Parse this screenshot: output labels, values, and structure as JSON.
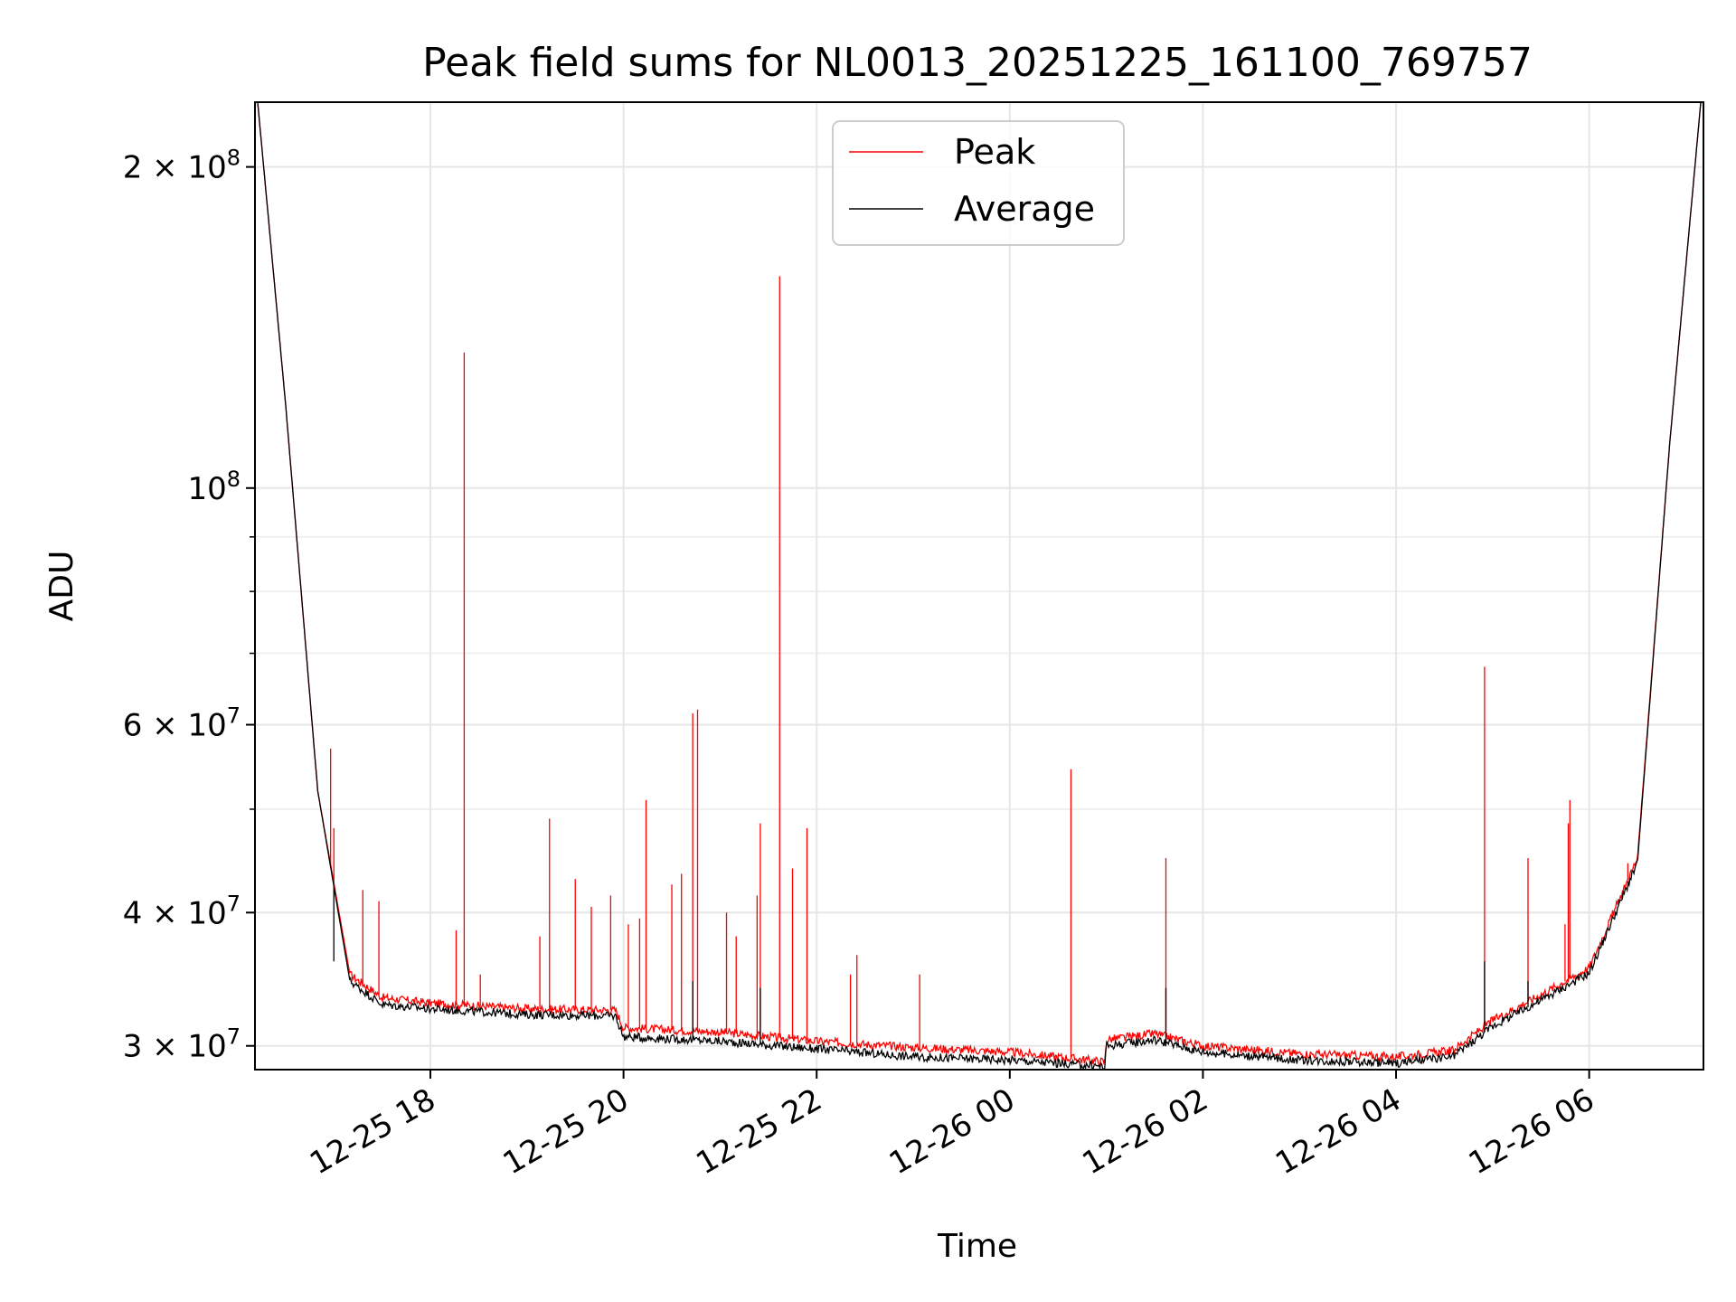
{
  "chart_data": {
    "type": "line",
    "title": "Peak field sums for NL0013_20251225_161100_769757",
    "xlabel": "Time",
    "ylabel": "ADU",
    "x_type": "datetime",
    "xlim": [
      "2025-12-25 16:11",
      "2025-12-26 07:11"
    ],
    "x_ticks": [
      {
        "value": "2025-12-25 18:00",
        "label": "12-25 18"
      },
      {
        "value": "2025-12-25 20:00",
        "label": "12-25 20"
      },
      {
        "value": "2025-12-25 22:00",
        "label": "12-25 22"
      },
      {
        "value": "2025-12-26 00:00",
        "label": "12-26 00"
      },
      {
        "value": "2025-12-26 02:00",
        "label": "12-26 02"
      },
      {
        "value": "2025-12-26 04:00",
        "label": "12-26 04"
      },
      {
        "value": "2025-12-26 06:00",
        "label": "12-26 06"
      }
    ],
    "y_scale": "log",
    "ylim": [
      28500000,
      230000000
    ],
    "y_major_ticks": [
      {
        "value": 30000000,
        "mantissa": "3",
        "exponent": "7"
      },
      {
        "value": 40000000,
        "mantissa": "4",
        "exponent": "7"
      },
      {
        "value": 60000000,
        "mantissa": "6",
        "exponent": "7"
      },
      {
        "value": 100000000,
        "mantissa": "",
        "exponent": "8"
      },
      {
        "value": 200000000,
        "mantissa": "2",
        "exponent": "8"
      }
    ],
    "y_minor_ticks": [
      50000000,
      70000000,
      80000000,
      90000000
    ],
    "grid": true,
    "legend_position": "top-center",
    "series": [
      {
        "name": "Peak",
        "color": "#ff0000",
        "x": [
          "2025-12-25 16:11",
          "2025-12-25 16:30",
          "2025-12-25 16:50",
          "2025-12-25 17:10",
          "2025-12-25 17:30",
          "2025-12-25 18:00",
          "2025-12-25 19:00",
          "2025-12-25 19:55",
          "2025-12-25 20:00",
          "2025-12-25 21:00",
          "2025-12-25 22:00",
          "2025-12-25 23:00",
          "2025-12-26 00:00",
          "2025-12-26 00:59",
          "2025-12-26 01:00",
          "2025-12-26 01:30",
          "2025-12-26 02:00",
          "2025-12-26 03:00",
          "2025-12-26 04:00",
          "2025-12-26 04:35",
          "2025-12-26 05:00",
          "2025-12-26 05:30",
          "2025-12-26 06:00",
          "2025-12-26 06:30",
          "2025-12-26 06:50",
          "2025-12-26 07:11"
        ],
        "y": [
          245000000,
          120000000,
          52000000,
          35000000,
          33300000,
          32900000,
          32500000,
          32400000,
          31200000,
          30900000,
          30300000,
          29900000,
          29600000,
          29000000,
          30400000,
          30800000,
          30000000,
          29500000,
          29300000,
          29700000,
          31700000,
          33500000,
          35500000,
          45000000,
          110000000,
          245000000
        ],
        "spikes": [
          {
            "x": "2025-12-25 16:58",
            "y": 57000000
          },
          {
            "x": "2025-12-25 17:00",
            "y": 48000000
          },
          {
            "x": "2025-12-25 17:18",
            "y": 42000000
          },
          {
            "x": "2025-12-25 17:28",
            "y": 41000000
          },
          {
            "x": "2025-12-25 18:16",
            "y": 38500000
          },
          {
            "x": "2025-12-25 18:21",
            "y": 134000000
          },
          {
            "x": "2025-12-25 18:31",
            "y": 35000000
          },
          {
            "x": "2025-12-25 19:08",
            "y": 38000000
          },
          {
            "x": "2025-12-25 19:14",
            "y": 49000000
          },
          {
            "x": "2025-12-25 19:30",
            "y": 43000000
          },
          {
            "x": "2025-12-25 19:40",
            "y": 40500000
          },
          {
            "x": "2025-12-25 19:52",
            "y": 41500000
          },
          {
            "x": "2025-12-25 20:03",
            "y": 39000000
          },
          {
            "x": "2025-12-25 20:10",
            "y": 39500000
          },
          {
            "x": "2025-12-25 20:14",
            "y": 51000000
          },
          {
            "x": "2025-12-25 20:30",
            "y": 42500000
          },
          {
            "x": "2025-12-25 20:36",
            "y": 43500000
          },
          {
            "x": "2025-12-25 20:43",
            "y": 61500000
          },
          {
            "x": "2025-12-25 20:46",
            "y": 62000000
          },
          {
            "x": "2025-12-25 21:04",
            "y": 40000000
          },
          {
            "x": "2025-12-25 21:10",
            "y": 38000000
          },
          {
            "x": "2025-12-25 21:23",
            "y": 41500000
          },
          {
            "x": "2025-12-25 21:25",
            "y": 48500000
          },
          {
            "x": "2025-12-25 21:37",
            "y": 158000000
          },
          {
            "x": "2025-12-25 21:45",
            "y": 44000000
          },
          {
            "x": "2025-12-25 21:54",
            "y": 48000000
          },
          {
            "x": "2025-12-25 22:21",
            "y": 35000000
          },
          {
            "x": "2025-12-25 22:25",
            "y": 36500000
          },
          {
            "x": "2025-12-25 23:04",
            "y": 35000000
          },
          {
            "x": "2025-12-26 00:38",
            "y": 54500000
          },
          {
            "x": "2025-12-26 01:37",
            "y": 45000000
          },
          {
            "x": "2025-12-26 04:55",
            "y": 68000000
          },
          {
            "x": "2025-12-26 05:22",
            "y": 45000000
          },
          {
            "x": "2025-12-26 05:45",
            "y": 39000000
          },
          {
            "x": "2025-12-26 05:47",
            "y": 48500000
          },
          {
            "x": "2025-12-26 05:48",
            "y": 51000000
          },
          {
            "x": "2025-12-26 06:24",
            "y": 44500000
          }
        ]
      },
      {
        "name": "Average",
        "color": "#000000",
        "x": [
          "2025-12-25 16:11",
          "2025-12-25 16:30",
          "2025-12-25 16:50",
          "2025-12-25 17:10",
          "2025-12-25 17:30",
          "2025-12-25 18:00",
          "2025-12-25 19:00",
          "2025-12-25 19:55",
          "2025-12-25 20:00",
          "2025-12-25 21:00",
          "2025-12-25 22:00",
          "2025-12-25 23:00",
          "2025-12-26 00:00",
          "2025-12-26 00:59",
          "2025-12-26 01:00",
          "2025-12-26 01:30",
          "2025-12-26 02:00",
          "2025-12-26 03:00",
          "2025-12-26 04:00",
          "2025-12-26 04:35",
          "2025-12-26 05:00",
          "2025-12-26 05:30",
          "2025-12-26 06:00",
          "2025-12-26 06:30",
          "2025-12-26 06:50",
          "2025-12-26 07:11"
        ],
        "y": [
          245000000,
          120000000,
          52000000,
          34500000,
          32800000,
          32500000,
          32100000,
          32000000,
          30600000,
          30300000,
          29800000,
          29300000,
          29100000,
          28700000,
          30000000,
          30400000,
          29600000,
          29100000,
          28900000,
          29300000,
          31300000,
          33100000,
          35100000,
          44500000,
          110000000,
          245000000
        ],
        "spikes": [
          {
            "x": "2025-12-25 17:00",
            "y": 36000000
          },
          {
            "x": "2025-12-25 20:43",
            "y": 34500000
          },
          {
            "x": "2025-12-25 21:25",
            "y": 34000000
          },
          {
            "x": "2025-12-26 01:37",
            "y": 34000000
          },
          {
            "x": "2025-12-26 04:55",
            "y": 36000000
          },
          {
            "x": "2025-12-26 05:22",
            "y": 34500000
          }
        ]
      }
    ]
  }
}
